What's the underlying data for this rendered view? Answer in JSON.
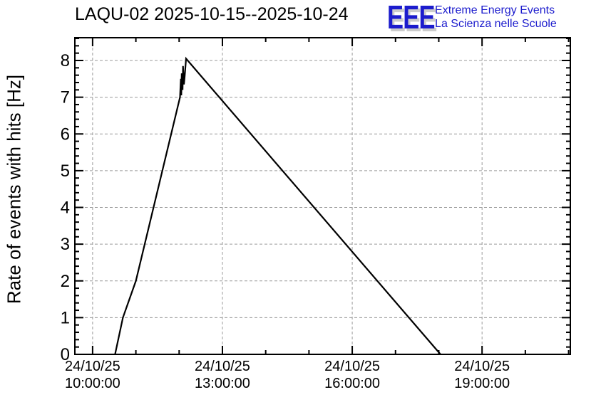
{
  "logo": {
    "acronym": "EEE",
    "line1": "Extreme Energy Events",
    "line2": "La Scienza nelle Scuole",
    "color": "#1c1ccd",
    "shadow_color": "#cccccc"
  },
  "chart_data": {
    "type": "line",
    "title": "LAQU-02 2025-10-15--2025-10-24",
    "station": "LAQU-02",
    "date_range": "2025-10-15--2025-10-24",
    "ylabel": "Rate of events with hits [Hz]",
    "xlabel": "",
    "grid": true,
    "axis_color": "#000000",
    "grid_color": "#9a9a9a",
    "x_axis": {
      "unit": "time of day (24/10/25)",
      "min_hours": 9.59,
      "max_hours": 21.04,
      "minor_step_hours": 1,
      "major_ticks": [
        {
          "hours": 10,
          "label_date": "24/10/25",
          "label_time": "10:00:00"
        },
        {
          "hours": 13,
          "label_date": "24/10/25",
          "label_time": "13:00:00"
        },
        {
          "hours": 16,
          "label_date": "24/10/25",
          "label_time": "16:00:00"
        },
        {
          "hours": 19,
          "label_date": "24/10/25",
          "label_time": "19:00:00"
        }
      ]
    },
    "y_axis": {
      "min": 0,
      "max": 8.62,
      "minor_step": 0.2,
      "major_ticks": [
        0,
        1,
        2,
        3,
        4,
        5,
        6,
        7,
        8
      ]
    },
    "series": [
      {
        "name": "rate-of-events-with-hits",
        "color": "#000000",
        "line_width": 2.2,
        "points_hours_hz": [
          [
            10.52,
            0.0
          ],
          [
            10.7,
            1.0
          ],
          [
            11.0,
            2.0
          ],
          [
            12.02,
            7.0
          ],
          [
            12.04,
            7.5
          ],
          [
            12.05,
            7.05
          ],
          [
            12.06,
            7.65
          ],
          [
            12.08,
            7.2
          ],
          [
            12.09,
            7.85
          ],
          [
            12.11,
            7.35
          ],
          [
            12.13,
            7.6
          ],
          [
            12.16,
            8.05
          ],
          [
            18.04,
            0.0
          ]
        ]
      }
    ],
    "annotations": {
      "peak_value_hz": 8.05,
      "peak_time": "12:10",
      "rise_start_time": "10:31",
      "return_to_zero_time": "18:02"
    }
  }
}
